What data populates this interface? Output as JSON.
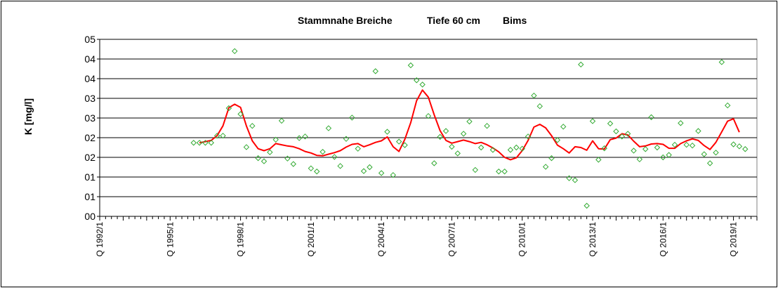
{
  "chart_data": {
    "type": "line",
    "title_parts": [
      "Stammnahe Breiche",
      "Tiefe  60 cm",
      "Bims"
    ],
    "ylabel": "K [mg/l]",
    "xlabel": "",
    "ylim": [
      0,
      4.5
    ],
    "xlim": [
      1992.0,
      2020.0
    ],
    "y_tick_values": [
      0,
      0.5,
      1.0,
      1.5,
      2.0,
      2.5,
      3.0,
      3.5,
      4.0,
      4.5
    ],
    "y_tick_labels": [
      "00",
      "01",
      "01",
      "02",
      "02",
      "03",
      "03",
      "04",
      "04",
      "05"
    ],
    "x_tick_labels": [
      {
        "x": 1992.0,
        "label": "Q 1992/1"
      },
      {
        "x": 1995.0,
        "label": "Q 1995/1"
      },
      {
        "x": 1998.0,
        "label": "Q 1998/1"
      },
      {
        "x": 2001.0,
        "label": "Q 2001/1"
      },
      {
        "x": 2004.0,
        "label": "Q 2004/1"
      },
      {
        "x": 2007.0,
        "label": "Q 2007/1"
      },
      {
        "x": 2010.0,
        "label": "Q 2010/1"
      },
      {
        "x": 2013.0,
        "label": "Q 2013/1"
      },
      {
        "x": 2016.0,
        "label": "Q 2016/1"
      },
      {
        "x": 2019.0,
        "label": "Q 2019/1"
      }
    ],
    "grid": {
      "horizontal": true,
      "vertical": false
    },
    "colors": {
      "line": "#ff0000",
      "markers": "#33aa33",
      "plot_background": "#ffffff",
      "grid": "#000000"
    },
    "series": [
      {
        "kind": "markers",
        "marker": "diamond-open",
        "points": [
          [
            1996.0,
            1.87
          ],
          [
            1996.25,
            1.87
          ],
          [
            1996.5,
            1.87
          ],
          [
            1996.75,
            1.87
          ],
          [
            1997.0,
            2.05
          ],
          [
            1997.25,
            2.05
          ],
          [
            1997.5,
            2.75
          ],
          [
            1997.75,
            4.2
          ],
          [
            1998.0,
            2.6
          ],
          [
            1998.25,
            1.76
          ],
          [
            1998.5,
            2.3
          ],
          [
            1998.75,
            1.48
          ],
          [
            1999.0,
            1.4
          ],
          [
            1999.25,
            1.63
          ],
          [
            1999.5,
            1.95
          ],
          [
            1999.75,
            2.43
          ],
          [
            2000.0,
            1.47
          ],
          [
            2000.25,
            1.33
          ],
          [
            2000.5,
            1.99
          ],
          [
            2000.75,
            2.03
          ],
          [
            2001.0,
            1.22
          ],
          [
            2001.25,
            1.14
          ],
          [
            2001.5,
            1.64
          ],
          [
            2001.75,
            2.24
          ],
          [
            2002.0,
            1.51
          ],
          [
            2002.25,
            1.28
          ],
          [
            2002.5,
            1.97
          ],
          [
            2002.75,
            2.51
          ],
          [
            2003.0,
            1.72
          ],
          [
            2003.25,
            1.15
          ],
          [
            2003.5,
            1.25
          ],
          [
            2003.75,
            3.69
          ],
          [
            2004.0,
            1.1
          ],
          [
            2004.25,
            2.15
          ],
          [
            2004.5,
            1.05
          ],
          [
            2004.75,
            1.9
          ],
          [
            2005.0,
            1.81
          ],
          [
            2005.25,
            3.84
          ],
          [
            2005.5,
            3.46
          ],
          [
            2005.75,
            3.35
          ],
          [
            2006.0,
            2.55
          ],
          [
            2006.25,
            1.35
          ],
          [
            2006.5,
            2.02
          ],
          [
            2006.75,
            2.17
          ],
          [
            2007.0,
            1.77
          ],
          [
            2007.25,
            1.6
          ],
          [
            2007.5,
            2.1
          ],
          [
            2007.75,
            2.41
          ],
          [
            2008.0,
            1.18
          ],
          [
            2008.25,
            1.75
          ],
          [
            2008.5,
            2.3
          ],
          [
            2008.75,
            1.69
          ],
          [
            2009.0,
            1.14
          ],
          [
            2009.25,
            1.14
          ],
          [
            2009.5,
            1.69
          ],
          [
            2009.75,
            1.75
          ],
          [
            2010.0,
            1.72
          ],
          [
            2010.25,
            2.03
          ],
          [
            2010.5,
            3.07
          ],
          [
            2010.75,
            2.8
          ],
          [
            2011.0,
            1.26
          ],
          [
            2011.25,
            1.48
          ],
          [
            2011.5,
            1.94
          ],
          [
            2011.75,
            2.28
          ],
          [
            2012.0,
            0.97
          ],
          [
            2012.25,
            0.92
          ],
          [
            2012.5,
            3.86
          ],
          [
            2012.75,
            0.27
          ],
          [
            2013.0,
            2.42
          ],
          [
            2013.25,
            1.44
          ],
          [
            2013.5,
            1.73
          ],
          [
            2013.75,
            2.36
          ],
          [
            2014.0,
            2.16
          ],
          [
            2014.25,
            2.03
          ],
          [
            2014.5,
            2.1
          ],
          [
            2014.75,
            1.67
          ],
          [
            2015.0,
            1.45
          ],
          [
            2015.25,
            1.71
          ],
          [
            2015.5,
            2.52
          ],
          [
            2015.75,
            1.75
          ],
          [
            2016.0,
            1.5
          ],
          [
            2016.25,
            1.56
          ],
          [
            2016.5,
            1.82
          ],
          [
            2016.75,
            2.37
          ],
          [
            2017.0,
            1.82
          ],
          [
            2017.25,
            1.8
          ],
          [
            2017.5,
            2.17
          ],
          [
            2017.75,
            1.58
          ],
          [
            2018.0,
            1.35
          ],
          [
            2018.25,
            1.62
          ],
          [
            2018.5,
            3.92
          ],
          [
            2018.75,
            2.82
          ],
          [
            2019.0,
            1.83
          ],
          [
            2019.25,
            1.78
          ],
          [
            2019.5,
            1.71
          ]
        ]
      },
      {
        "kind": "line",
        "points": [
          [
            1996.25,
            1.87
          ],
          [
            1996.75,
            1.93
          ],
          [
            1997.0,
            2.05
          ],
          [
            1997.25,
            2.3
          ],
          [
            1997.5,
            2.76
          ],
          [
            1997.75,
            2.85
          ],
          [
            1998.0,
            2.77
          ],
          [
            1998.25,
            2.3
          ],
          [
            1998.5,
            1.92
          ],
          [
            1998.75,
            1.72
          ],
          [
            1999.0,
            1.67
          ],
          [
            1999.25,
            1.72
          ],
          [
            1999.5,
            1.85
          ],
          [
            1999.75,
            1.82
          ],
          [
            2000.0,
            1.79
          ],
          [
            2000.25,
            1.77
          ],
          [
            2000.5,
            1.72
          ],
          [
            2000.75,
            1.65
          ],
          [
            2001.0,
            1.61
          ],
          [
            2001.25,
            1.55
          ],
          [
            2001.5,
            1.54
          ],
          [
            2001.75,
            1.58
          ],
          [
            2002.0,
            1.62
          ],
          [
            2002.25,
            1.67
          ],
          [
            2002.5,
            1.76
          ],
          [
            2002.75,
            1.83
          ],
          [
            2003.0,
            1.85
          ],
          [
            2003.25,
            1.77
          ],
          [
            2003.5,
            1.82
          ],
          [
            2003.75,
            1.88
          ],
          [
            2004.0,
            1.92
          ],
          [
            2004.25,
            2.02
          ],
          [
            2004.5,
            1.77
          ],
          [
            2004.75,
            1.65
          ],
          [
            2005.0,
            1.96
          ],
          [
            2005.25,
            2.38
          ],
          [
            2005.5,
            2.94
          ],
          [
            2005.75,
            3.21
          ],
          [
            2006.0,
            3.03
          ],
          [
            2006.25,
            2.58
          ],
          [
            2006.5,
            2.18
          ],
          [
            2006.75,
            1.93
          ],
          [
            2007.0,
            1.86
          ],
          [
            2007.25,
            1.9
          ],
          [
            2007.5,
            1.94
          ],
          [
            2007.75,
            1.9
          ],
          [
            2008.0,
            1.85
          ],
          [
            2008.25,
            1.88
          ],
          [
            2008.5,
            1.82
          ],
          [
            2008.75,
            1.74
          ],
          [
            2009.0,
            1.64
          ],
          [
            2009.25,
            1.5
          ],
          [
            2009.5,
            1.44
          ],
          [
            2009.75,
            1.49
          ],
          [
            2010.0,
            1.67
          ],
          [
            2010.25,
            1.93
          ],
          [
            2010.5,
            2.27
          ],
          [
            2010.75,
            2.34
          ],
          [
            2011.0,
            2.25
          ],
          [
            2011.25,
            2.05
          ],
          [
            2011.5,
            1.81
          ],
          [
            2011.75,
            1.72
          ],
          [
            2012.0,
            1.61
          ],
          [
            2012.25,
            1.77
          ],
          [
            2012.5,
            1.75
          ],
          [
            2012.75,
            1.68
          ],
          [
            2013.0,
            1.92
          ],
          [
            2013.25,
            1.72
          ],
          [
            2013.5,
            1.71
          ],
          [
            2013.75,
            1.95
          ],
          [
            2014.0,
            1.99
          ],
          [
            2014.25,
            2.1
          ],
          [
            2014.5,
            2.07
          ],
          [
            2014.75,
            1.91
          ],
          [
            2015.0,
            1.77
          ],
          [
            2015.25,
            1.79
          ],
          [
            2015.5,
            1.84
          ],
          [
            2015.75,
            1.85
          ],
          [
            2016.0,
            1.83
          ],
          [
            2016.25,
            1.73
          ],
          [
            2016.5,
            1.73
          ],
          [
            2016.75,
            1.85
          ],
          [
            2017.0,
            1.92
          ],
          [
            2017.25,
            1.97
          ],
          [
            2017.5,
            1.93
          ],
          [
            2017.75,
            1.8
          ],
          [
            2018.0,
            1.7
          ],
          [
            2018.25,
            1.88
          ],
          [
            2018.5,
            2.15
          ],
          [
            2018.75,
            2.42
          ],
          [
            2019.0,
            2.48
          ],
          [
            2019.25,
            2.14
          ]
        ]
      }
    ]
  }
}
